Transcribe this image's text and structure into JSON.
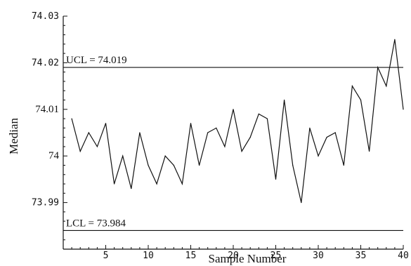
{
  "chart_data": {
    "type": "line",
    "xlabel": "Sample Number",
    "ylabel": "Median",
    "xlim": [
      0,
      40
    ],
    "ylim": [
      73.98,
      74.03
    ],
    "x_ticks": [
      {
        "value": 5,
        "label": "5"
      },
      {
        "value": 10,
        "label": "10"
      },
      {
        "value": 15,
        "label": "15"
      },
      {
        "value": 20,
        "label": "20"
      },
      {
        "value": 25,
        "label": "25"
      },
      {
        "value": 30,
        "label": "30"
      },
      {
        "value": 35,
        "label": "35"
      },
      {
        "value": 40,
        "label": "40"
      }
    ],
    "y_ticks": [
      {
        "value": 73.99,
        "label": "73.99",
        "style": "mono"
      },
      {
        "value": 74.0,
        "label": "74",
        "style": "serif"
      },
      {
        "value": 74.01,
        "label": "74.01",
        "style": "serif"
      },
      {
        "value": 74.02,
        "label": "74.02",
        "style": "mono"
      },
      {
        "value": 74.03,
        "label": "74.03",
        "style": "mono"
      }
    ],
    "control_limits": [
      {
        "name": "UCL",
        "value": 74.019,
        "label": "UCL = 74.019"
      },
      {
        "name": "LCL",
        "value": 73.984,
        "label": "LCL = 73.984"
      }
    ],
    "grid": false,
    "series": [
      {
        "x": [
          1,
          2,
          3,
          4,
          5,
          6,
          7,
          8,
          9,
          10,
          11,
          12,
          13,
          14,
          15,
          16,
          17,
          18,
          19,
          20,
          21,
          22,
          23,
          24,
          25,
          26,
          27,
          28,
          29,
          30,
          31,
          32,
          33,
          34,
          35,
          36,
          37,
          38,
          39,
          40
        ],
        "values": [
          74.008,
          74.001,
          74.005,
          74.002,
          74.007,
          73.994,
          74.0,
          73.993,
          74.005,
          73.998,
          73.994,
          74.0,
          73.998,
          73.994,
          74.007,
          73.998,
          74.005,
          74.006,
          74.002,
          74.01,
          74.001,
          74.004,
          74.009,
          74.008,
          73.995,
          74.012,
          73.998,
          73.99,
          74.006,
          74.0,
          74.004,
          74.005,
          73.998,
          74.015,
          74.012,
          74.001,
          74.019,
          74.015,
          74.025,
          74.01
        ]
      }
    ]
  }
}
